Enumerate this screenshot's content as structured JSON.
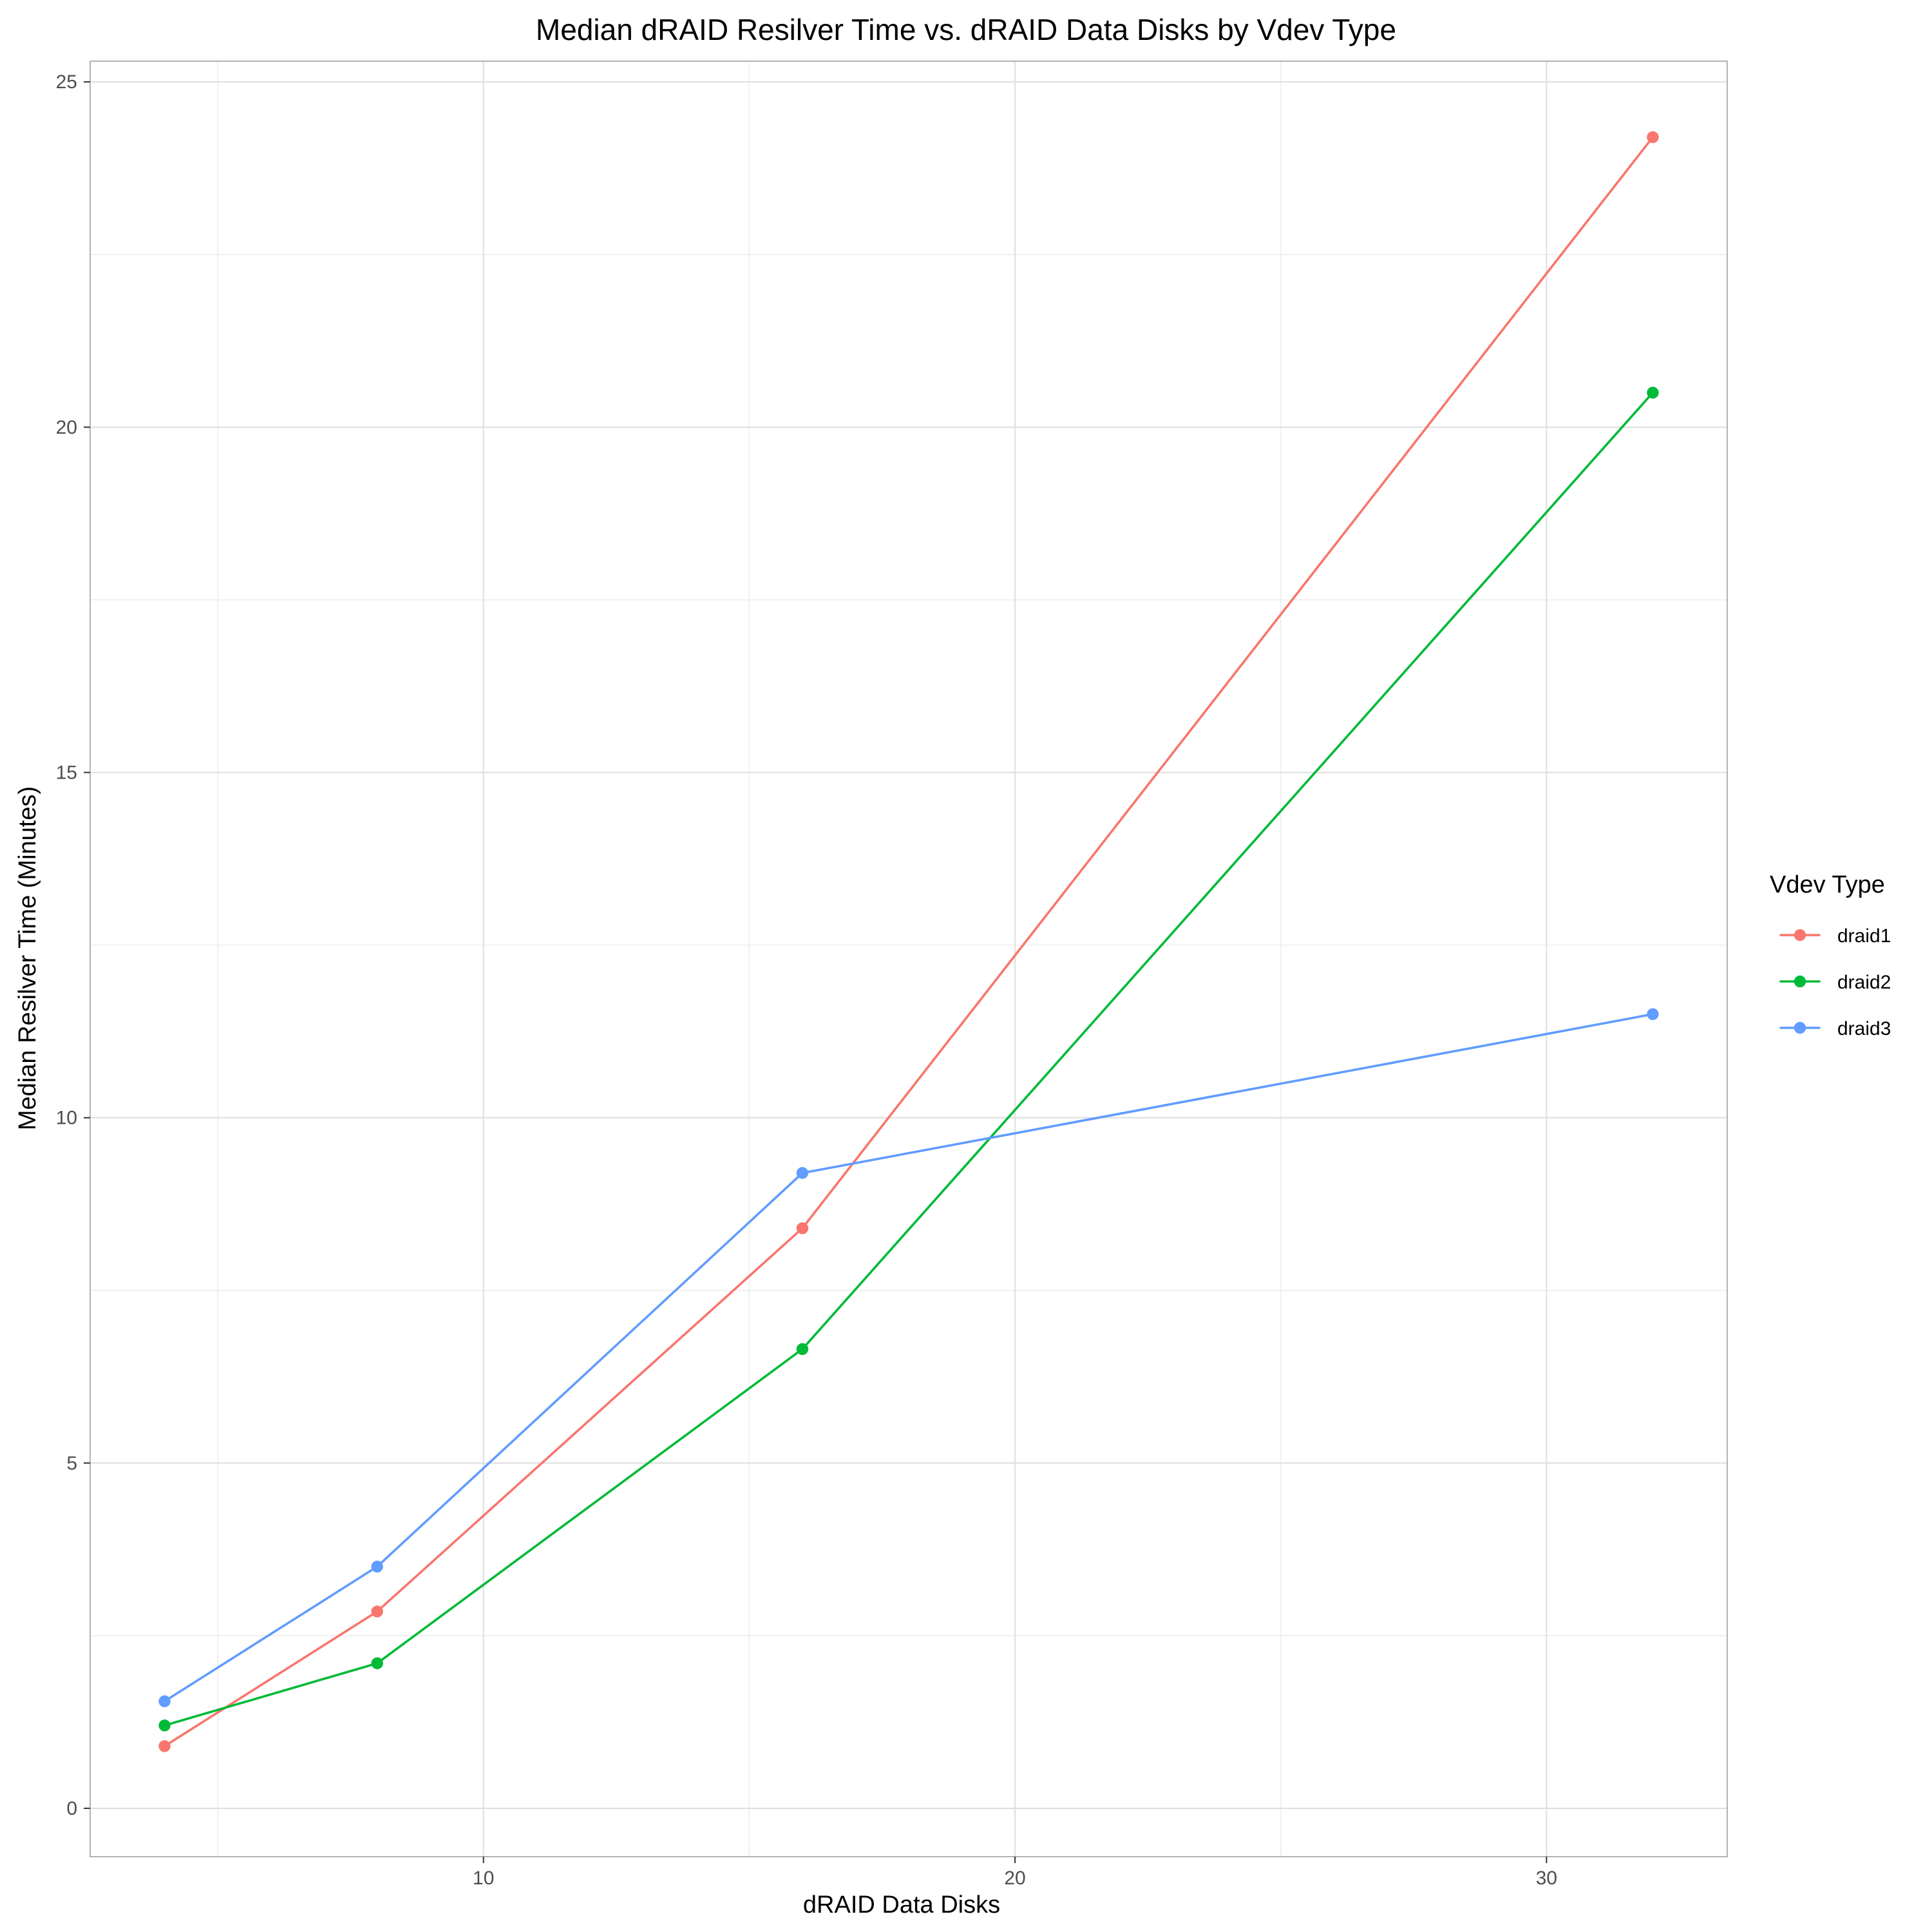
{
  "chart_data": {
    "type": "line",
    "title": "Median dRAID Resilver Time vs. dRAID Data Disks by Vdev Type",
    "xlabel": "dRAID Data Disks",
    "ylabel": "Median Resilver Time (Minutes)",
    "xlim": [
      2.6,
      33.4
    ],
    "ylim": [
      -0.7,
      25.3
    ],
    "x_ticks": [
      10,
      20,
      30
    ],
    "x_minor_ticks": [
      5,
      15,
      25
    ],
    "y_ticks": [
      0,
      5,
      10,
      15,
      20,
      25
    ],
    "y_minor_ticks": [
      2.5,
      7.5,
      12.5,
      17.5,
      22.5
    ],
    "grid": true,
    "legend": {
      "title": "Vdev Type",
      "placement": "right"
    },
    "series": [
      {
        "name": "draid1",
        "color": "#F8766D",
        "points": [
          {
            "x": 4,
            "y": 0.9
          },
          {
            "x": 8,
            "y": 2.85
          },
          {
            "x": 16,
            "y": 8.4
          },
          {
            "x": 32,
            "y": 24.2
          }
        ]
      },
      {
        "name": "draid2",
        "color": "#00BA38",
        "points": [
          {
            "x": 4,
            "y": 1.2
          },
          {
            "x": 8,
            "y": 2.1
          },
          {
            "x": 16,
            "y": 6.65
          },
          {
            "x": 32,
            "y": 20.5
          }
        ]
      },
      {
        "name": "draid3",
        "color": "#619CFF",
        "points": [
          {
            "x": 4,
            "y": 1.55
          },
          {
            "x": 8,
            "y": 3.5
          },
          {
            "x": 16,
            "y": 9.2
          },
          {
            "x": 32,
            "y": 11.5
          }
        ]
      }
    ]
  }
}
